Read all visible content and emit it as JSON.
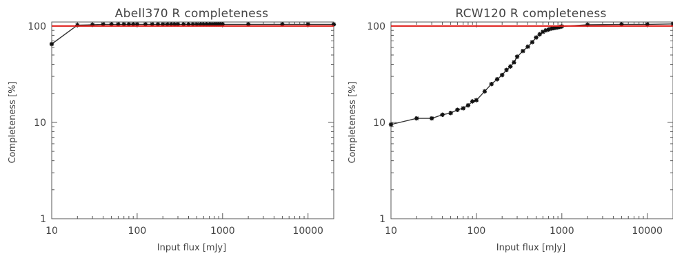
{
  "colors": {
    "data_line": "#333333",
    "reference_line": "#e0201c",
    "axis": "#555555",
    "text": "#444444"
  },
  "chart_data": [
    {
      "type": "line",
      "title": "Abell370 R completeness",
      "xlabel": "Input flux [mJy]",
      "ylabel": "Completeness [%]",
      "xscale": "log",
      "yscale": "log",
      "xlim": [
        10,
        20000
      ],
      "ylim": [
        1,
        110
      ],
      "xticks": [
        "10",
        "100",
        "1000",
        "10000"
      ],
      "yticks": [
        "1",
        "10",
        "100"
      ],
      "grid": false,
      "marker": "asterisk",
      "reference_line": 100,
      "series": [
        {
          "x": [
            10,
            20,
            30,
            40,
            50,
            60,
            70,
            80,
            90,
            100,
            125,
            150,
            175,
            200,
            225,
            250,
            275,
            300,
            350,
            400,
            450,
            500,
            550,
            600,
            650,
            700,
            750,
            800,
            850,
            900,
            950,
            1000,
            2000,
            5000,
            10000,
            20000
          ],
          "y": [
            65,
            102,
            103,
            104,
            104,
            104,
            104,
            104,
            104,
            104,
            104,
            104,
            104,
            104,
            104,
            104,
            104,
            104,
            104,
            104,
            104,
            104,
            104,
            104,
            104,
            104,
            104,
            104,
            104,
            104,
            104,
            104,
            104,
            104,
            104,
            104
          ]
        }
      ]
    },
    {
      "type": "line",
      "title": "RCW120 R completeness",
      "xlabel": "Input flux [mJy]",
      "ylabel": "Completeness [%]",
      "xscale": "log",
      "yscale": "log",
      "xlim": [
        10,
        20000
      ],
      "ylim": [
        1,
        110
      ],
      "xticks": [
        "10",
        "100",
        "1000",
        "10000"
      ],
      "yticks": [
        "1",
        "10",
        "100"
      ],
      "grid": false,
      "marker": "asterisk",
      "reference_line": 100,
      "series": [
        {
          "x": [
            10,
            20,
            30,
            40,
            50,
            60,
            70,
            80,
            90,
            100,
            125,
            150,
            175,
            200,
            225,
            250,
            275,
            300,
            350,
            400,
            450,
            500,
            550,
            600,
            650,
            700,
            750,
            800,
            850,
            900,
            950,
            1000,
            2000,
            5000,
            10000,
            20000
          ],
          "y": [
            9.5,
            11,
            11,
            12,
            12.5,
            13.5,
            14,
            15,
            16.5,
            17,
            21,
            25,
            28,
            31,
            35,
            38,
            42,
            48,
            55,
            61,
            68,
            76,
            82,
            87,
            90,
            92,
            94,
            95,
            96,
            97,
            98,
            99,
            103,
            104,
            104,
            105
          ]
        }
      ]
    }
  ]
}
